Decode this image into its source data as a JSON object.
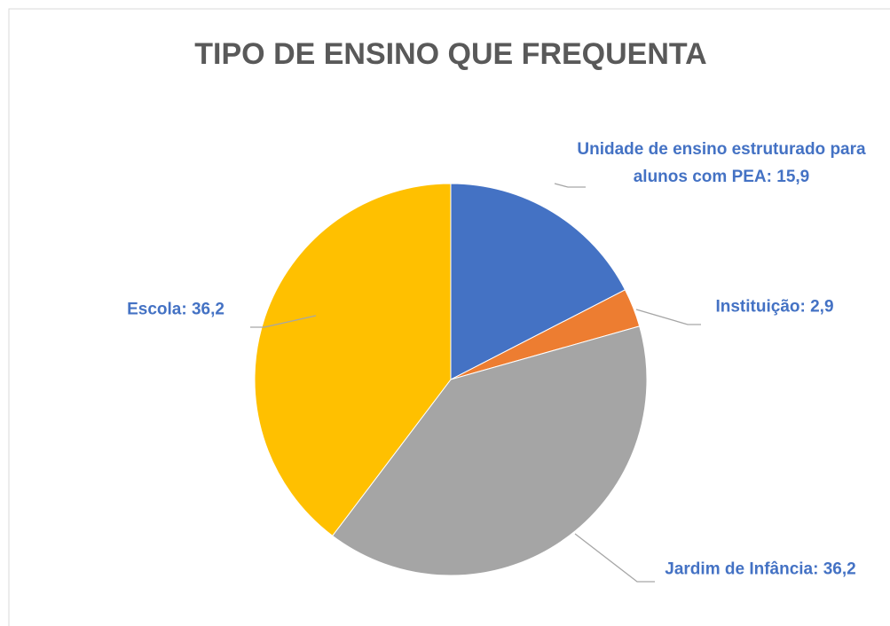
{
  "chart_data": {
    "type": "pie",
    "title": "TIPO DE ENSINO QUE FREQUENTA",
    "values": [
      15.9,
      2.9,
      36.2,
      36.2
    ],
    "value_labels": [
      "Unidade de ensino estruturado para alunos com PEA: 15,9",
      "Instituição: 2,9",
      "Jardim de Infância: 36,2",
      "Escola: 36,2"
    ],
    "colors": [
      "#4472c4",
      "#ed7d31",
      "#a5a5a5",
      "#ffc000"
    ]
  }
}
